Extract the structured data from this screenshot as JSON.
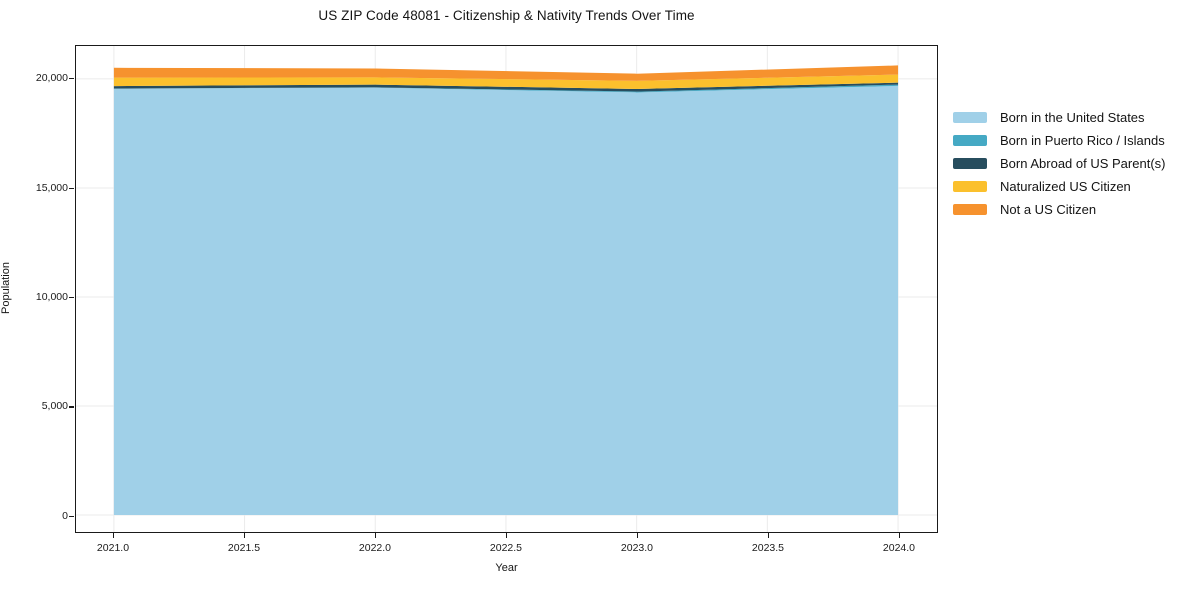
{
  "chart_data": {
    "type": "area",
    "stacked": true,
    "title": "US ZIP Code 48081 - Citizenship & Nativity Trends Over Time",
    "xlabel": "Year",
    "ylabel": "Population",
    "x": [
      2021,
      2022,
      2023,
      2024
    ],
    "series": [
      {
        "name": "Born in the United States",
        "color": "#A0D0E8",
        "values": [
          19550,
          19600,
          19380,
          19680
        ]
      },
      {
        "name": "Born in Puerto Rico / Islands",
        "color": "#45A9C4",
        "values": [
          10,
          10,
          40,
          60
        ]
      },
      {
        "name": "Born Abroad of US Parent(s)",
        "color": "#274D5E",
        "values": [
          110,
          130,
          120,
          90
        ]
      },
      {
        "name": "Naturalized US Citizen",
        "color": "#FBC02D",
        "values": [
          390,
          330,
          370,
          370
        ]
      },
      {
        "name": "Not a US Citizen",
        "color": "#F6922E",
        "values": [
          450,
          410,
          330,
          420
        ]
      }
    ],
    "xticks": {
      "values": [
        2021.0,
        2021.5,
        2022.0,
        2022.5,
        2023.0,
        2023.5,
        2024.0
      ],
      "labels": [
        "2021.0",
        "2021.5",
        "2022.0",
        "2022.5",
        "2023.0",
        "2023.5",
        "2024.0"
      ]
    },
    "yticks": {
      "values": [
        0,
        5000,
        10000,
        15000,
        20000
      ],
      "labels": [
        "0",
        "5,000",
        "10,000",
        "15,000",
        "20,000"
      ]
    },
    "xlim": [
      2020.855,
      2024.149
    ],
    "ylim": [
      -780,
      21510
    ],
    "grid": true,
    "grid_color": "#ebebeb",
    "spine_color": "#1a1a1a",
    "background": "#ffffff",
    "legend_position": "right-outside"
  }
}
